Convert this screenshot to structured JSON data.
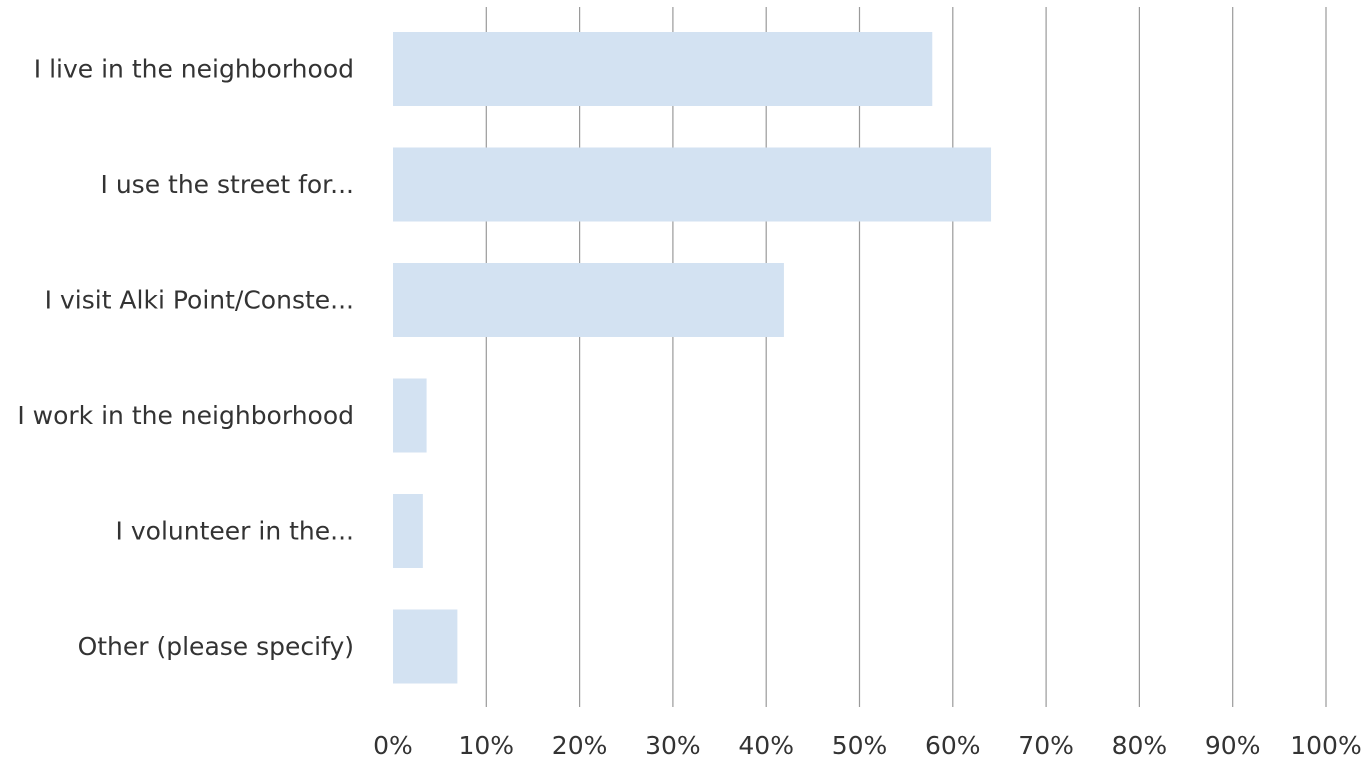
{
  "chart_data": {
    "type": "bar",
    "orientation": "horizontal",
    "categories": [
      "I live in the neighborhood",
      "I use the street for...",
      "I visit Alki Point/Conste...",
      "I work in the neighborhood",
      "I volunteer in the...",
      "Other (please specify)"
    ],
    "values": [
      57.8,
      64.1,
      41.9,
      3.6,
      3.2,
      6.9
    ],
    "xlim": [
      0,
      100
    ],
    "xticks": [
      "0%",
      "10%",
      "20%",
      "30%",
      "40%",
      "50%",
      "60%",
      "70%",
      "80%",
      "90%",
      "100%"
    ],
    "grid": "vertical",
    "title": "",
    "xlabel": "",
    "ylabel": "",
    "colors": {
      "bar": "#d3e2f2",
      "grid": "#9a9a9a",
      "text": "#333333"
    }
  }
}
